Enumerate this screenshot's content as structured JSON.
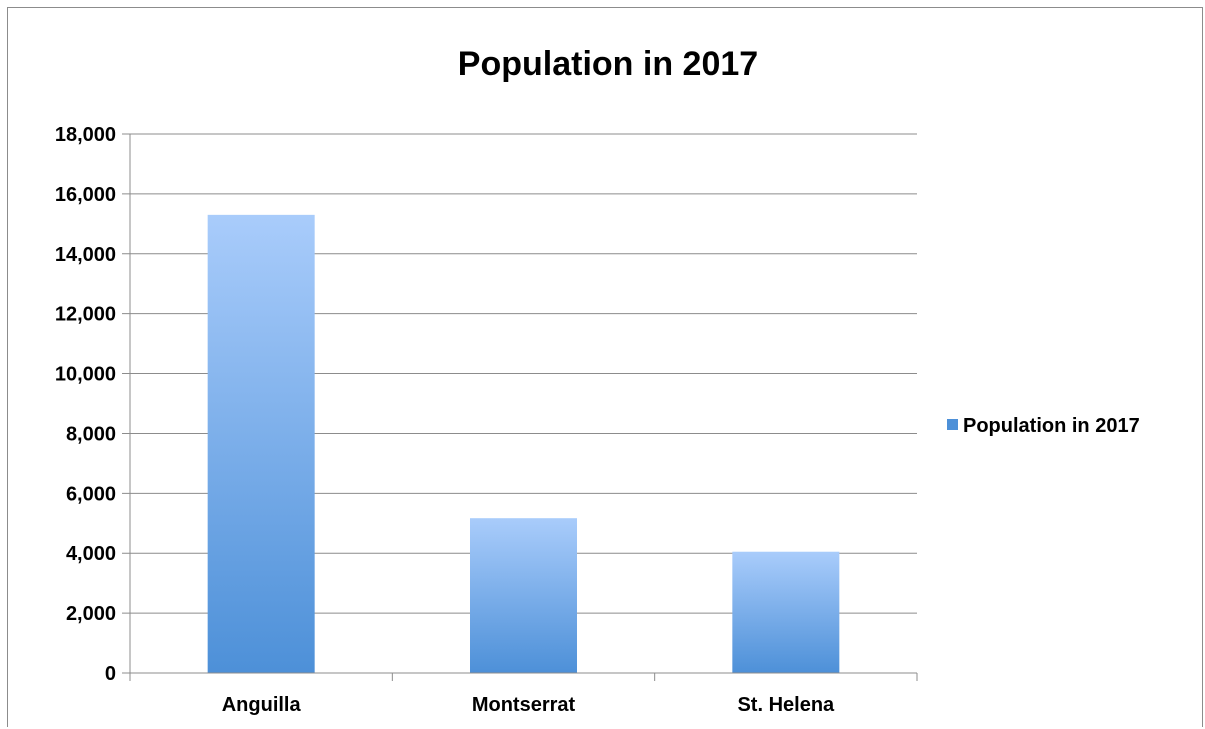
{
  "chart_data": {
    "type": "bar",
    "title": "Population in 2017",
    "xlabel": "",
    "ylabel": "",
    "categories": [
      "Anguilla",
      "Montserrat",
      "St. Helena"
    ],
    "series": [
      {
        "name": "Population in 2017",
        "values": [
          15300,
          5170,
          4050
        ]
      }
    ],
    "ylim": [
      0,
      18000
    ],
    "yticks": [
      0,
      2000,
      4000,
      6000,
      8000,
      10000,
      12000,
      14000,
      16000,
      18000
    ],
    "ytick_labels": [
      "0",
      "2,000",
      "4,000",
      "6,000",
      "8,000",
      "10,000",
      "12,000",
      "14,000",
      "16,000",
      "18,000"
    ],
    "grid": true,
    "legend_position": "right",
    "colors": {
      "bar_top": "#a9ccfb",
      "bar_bottom": "#4d90d8",
      "grid": "#8c8c8c",
      "legend_swatch": "#4d90d8"
    }
  }
}
